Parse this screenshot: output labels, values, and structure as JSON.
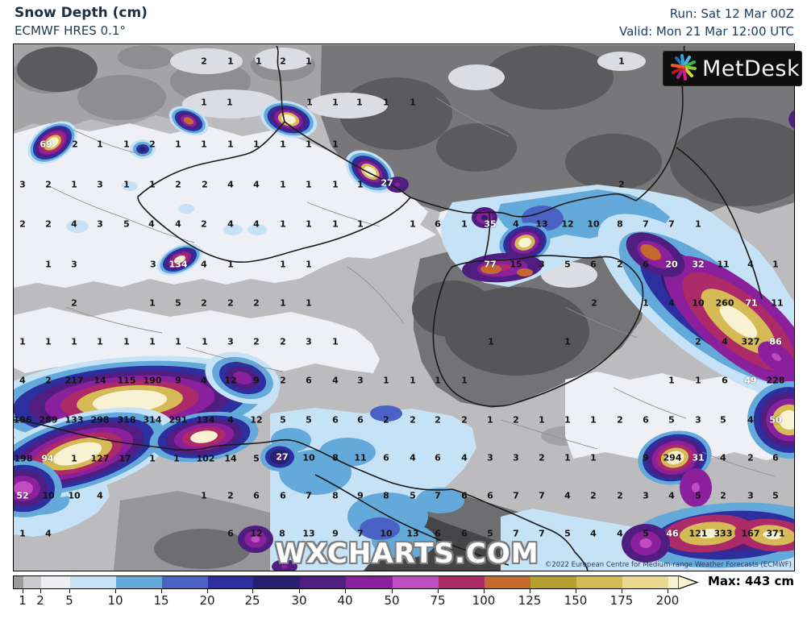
{
  "header": {
    "title": "Snow Depth (cm)",
    "subtitle": "ECMWF HRES 0.1°",
    "run_label": "Run: Sat 12 Mar 00Z",
    "valid_label": "Valid: Mon 21 Mar 12:00 UTC"
  },
  "logo": {
    "text": "MetDesk"
  },
  "theme": {
    "title_color": "#1b3047",
    "run_color": "#1c3e63"
  },
  "map": {
    "watermark": "WXCHARTS.COM",
    "copyright": "©2022 European Centre for Medium-range Weather Forecasts (ECMWF)",
    "values": [
      [
        252,
        75,
        "2"
      ],
      [
        285,
        75,
        "1"
      ],
      [
        320,
        75,
        "1"
      ],
      [
        350,
        75,
        "2"
      ],
      [
        382,
        75,
        "1"
      ],
      [
        770,
        75,
        "1"
      ],
      [
        252,
        126,
        "1"
      ],
      [
        284,
        126,
        "1"
      ],
      [
        383,
        126,
        "1"
      ],
      [
        415,
        126,
        "1"
      ],
      [
        445,
        126,
        "1"
      ],
      [
        478,
        126,
        "1"
      ],
      [
        511,
        126,
        "1"
      ],
      [
        56,
        178,
        "69",
        "w"
      ],
      [
        92,
        178,
        "2"
      ],
      [
        123,
        178,
        "1"
      ],
      [
        156,
        178,
        "1"
      ],
      [
        188,
        178,
        "2"
      ],
      [
        220,
        178,
        "1"
      ],
      [
        252,
        178,
        "1"
      ],
      [
        285,
        178,
        "1"
      ],
      [
        317,
        178,
        "1"
      ],
      [
        350,
        178,
        "1"
      ],
      [
        382,
        178,
        "1"
      ],
      [
        415,
        178,
        "1"
      ],
      [
        27,
        228,
        "3"
      ],
      [
        59,
        228,
        "2"
      ],
      [
        91,
        228,
        "1"
      ],
      [
        123,
        228,
        "3"
      ],
      [
        156,
        228,
        "1"
      ],
      [
        188,
        228,
        "1"
      ],
      [
        220,
        228,
        "2"
      ],
      [
        253,
        228,
        "2"
      ],
      [
        285,
        228,
        "4"
      ],
      [
        317,
        228,
        "4"
      ],
      [
        350,
        228,
        "1"
      ],
      [
        382,
        228,
        "1"
      ],
      [
        415,
        228,
        "1"
      ],
      [
        446,
        228,
        "1"
      ],
      [
        479,
        226,
        "27",
        "w"
      ],
      [
        770,
        228,
        "2"
      ],
      [
        27,
        277,
        "2"
      ],
      [
        59,
        277,
        "2"
      ],
      [
        91,
        277,
        "4"
      ],
      [
        123,
        277,
        "3"
      ],
      [
        156,
        277,
        "5"
      ],
      [
        187,
        277,
        "4"
      ],
      [
        220,
        277,
        "4"
      ],
      [
        252,
        277,
        "2"
      ],
      [
        285,
        277,
        "4"
      ],
      [
        317,
        277,
        "4"
      ],
      [
        350,
        277,
        "1"
      ],
      [
        382,
        277,
        "1"
      ],
      [
        415,
        277,
        "1"
      ],
      [
        446,
        277,
        "1"
      ],
      [
        511,
        277,
        "1"
      ],
      [
        542,
        277,
        "6"
      ],
      [
        575,
        277,
        "1"
      ],
      [
        607,
        277,
        "35",
        "w"
      ],
      [
        639,
        277,
        "4"
      ],
      [
        671,
        277,
        "13"
      ],
      [
        703,
        277,
        "12"
      ],
      [
        735,
        277,
        "10"
      ],
      [
        768,
        277,
        "8"
      ],
      [
        800,
        277,
        "7"
      ],
      [
        832,
        277,
        "7"
      ],
      [
        865,
        277,
        "1"
      ],
      [
        59,
        327,
        "1"
      ],
      [
        91,
        327,
        "3"
      ],
      [
        189,
        327,
        "3"
      ],
      [
        220,
        327,
        "134",
        "w"
      ],
      [
        252,
        327,
        "4"
      ],
      [
        285,
        327,
        "1"
      ],
      [
        350,
        327,
        "1"
      ],
      [
        382,
        327,
        "1"
      ],
      [
        607,
        327,
        "77",
        "w"
      ],
      [
        639,
        327,
        "15"
      ],
      [
        671,
        327,
        "3"
      ],
      [
        703,
        327,
        "5"
      ],
      [
        735,
        327,
        "6"
      ],
      [
        768,
        327,
        "2"
      ],
      [
        800,
        327,
        "6"
      ],
      [
        832,
        327,
        "20",
        "w"
      ],
      [
        865,
        327,
        "32",
        "w"
      ],
      [
        896,
        327,
        "11"
      ],
      [
        930,
        327,
        "4"
      ],
      [
        961,
        327,
        "1"
      ],
      [
        91,
        375,
        "2"
      ],
      [
        188,
        375,
        "1"
      ],
      [
        220,
        375,
        "5"
      ],
      [
        252,
        375,
        "2"
      ],
      [
        285,
        375,
        "2"
      ],
      [
        317,
        375,
        "2"
      ],
      [
        350,
        375,
        "1"
      ],
      [
        382,
        375,
        "1"
      ],
      [
        736,
        375,
        "2"
      ],
      [
        800,
        375,
        "1"
      ],
      [
        832,
        375,
        "4"
      ],
      [
        865,
        375,
        "10"
      ],
      [
        898,
        375,
        "260"
      ],
      [
        931,
        375,
        "71",
        "w"
      ],
      [
        963,
        375,
        "11"
      ],
      [
        27,
        423,
        "1"
      ],
      [
        59,
        423,
        "1"
      ],
      [
        91,
        423,
        "1"
      ],
      [
        123,
        423,
        "1"
      ],
      [
        156,
        423,
        "1"
      ],
      [
        188,
        423,
        "1"
      ],
      [
        220,
        423,
        "1"
      ],
      [
        253,
        423,
        "1"
      ],
      [
        285,
        423,
        "3"
      ],
      [
        317,
        423,
        "2"
      ],
      [
        350,
        423,
        "2"
      ],
      [
        382,
        423,
        "3"
      ],
      [
        415,
        423,
        "1"
      ],
      [
        608,
        423,
        "1"
      ],
      [
        703,
        423,
        "1"
      ],
      [
        865,
        423,
        "2"
      ],
      [
        898,
        423,
        "4"
      ],
      [
        930,
        423,
        "327"
      ],
      [
        961,
        423,
        "86",
        "w"
      ],
      [
        27,
        471,
        "4"
      ],
      [
        59,
        471,
        "2"
      ],
      [
        91,
        471,
        "217"
      ],
      [
        123,
        471,
        "14"
      ],
      [
        156,
        471,
        "115"
      ],
      [
        188,
        471,
        "190"
      ],
      [
        220,
        471,
        "9"
      ],
      [
        252,
        471,
        "4"
      ],
      [
        285,
        471,
        "12"
      ],
      [
        317,
        471,
        "9"
      ],
      [
        350,
        471,
        "2"
      ],
      [
        382,
        471,
        "6"
      ],
      [
        415,
        471,
        "4"
      ],
      [
        446,
        471,
        "3"
      ],
      [
        478,
        471,
        "1"
      ],
      [
        511,
        471,
        "1"
      ],
      [
        542,
        471,
        "1"
      ],
      [
        575,
        471,
        "1"
      ],
      [
        832,
        471,
        "1"
      ],
      [
        865,
        471,
        "1"
      ],
      [
        898,
        471,
        "6"
      ],
      [
        930,
        471,
        "49",
        "w"
      ],
      [
        961,
        471,
        "228"
      ],
      [
        27,
        520,
        "196"
      ],
      [
        59,
        520,
        "289"
      ],
      [
        91,
        520,
        "133"
      ],
      [
        123,
        520,
        "298"
      ],
      [
        156,
        520,
        "318"
      ],
      [
        188,
        520,
        "314"
      ],
      [
        220,
        520,
        "291"
      ],
      [
        254,
        520,
        "134"
      ],
      [
        285,
        520,
        "4"
      ],
      [
        317,
        520,
        "12"
      ],
      [
        350,
        520,
        "5"
      ],
      [
        382,
        520,
        "5"
      ],
      [
        415,
        520,
        "6"
      ],
      [
        446,
        520,
        "6"
      ],
      [
        478,
        520,
        "2"
      ],
      [
        511,
        520,
        "2"
      ],
      [
        542,
        520,
        "2"
      ],
      [
        575,
        520,
        "2"
      ],
      [
        607,
        520,
        "1"
      ],
      [
        639,
        520,
        "2"
      ],
      [
        671,
        520,
        "1"
      ],
      [
        703,
        520,
        "1"
      ],
      [
        735,
        520,
        "1"
      ],
      [
        768,
        520,
        "2"
      ],
      [
        800,
        520,
        "6"
      ],
      [
        832,
        520,
        "5"
      ],
      [
        865,
        520,
        "3"
      ],
      [
        896,
        520,
        "5"
      ],
      [
        930,
        520,
        "4"
      ],
      [
        961,
        520,
        "50",
        "w"
      ],
      [
        28,
        568,
        "198"
      ],
      [
        58,
        568,
        "94",
        "w"
      ],
      [
        91,
        568,
        "1"
      ],
      [
        123,
        568,
        "127"
      ],
      [
        154,
        568,
        "17"
      ],
      [
        188,
        568,
        "1"
      ],
      [
        218,
        568,
        "1"
      ],
      [
        254,
        568,
        "102"
      ],
      [
        285,
        568,
        "14"
      ],
      [
        317,
        568,
        "5"
      ],
      [
        349,
        566,
        "27",
        "w"
      ],
      [
        382,
        567,
        "10"
      ],
      [
        415,
        567,
        "8"
      ],
      [
        446,
        567,
        "11"
      ],
      [
        478,
        567,
        "6"
      ],
      [
        511,
        567,
        "4"
      ],
      [
        542,
        567,
        "6"
      ],
      [
        575,
        567,
        "4"
      ],
      [
        607,
        567,
        "3"
      ],
      [
        639,
        567,
        "3"
      ],
      [
        671,
        567,
        "2"
      ],
      [
        703,
        567,
        "1"
      ],
      [
        735,
        567,
        "1"
      ],
      [
        800,
        567,
        "9"
      ],
      [
        833,
        567,
        "294"
      ],
      [
        865,
        567,
        "31",
        "w"
      ],
      [
        896,
        567,
        "4"
      ],
      [
        930,
        567,
        "2"
      ],
      [
        961,
        567,
        "6"
      ],
      [
        27,
        614,
        "52",
        "w"
      ],
      [
        59,
        614,
        "10"
      ],
      [
        91,
        614,
        "10"
      ],
      [
        123,
        614,
        "4"
      ],
      [
        252,
        614,
        "1"
      ],
      [
        285,
        614,
        "2"
      ],
      [
        317,
        614,
        "6"
      ],
      [
        350,
        614,
        "6"
      ],
      [
        382,
        614,
        "7"
      ],
      [
        415,
        614,
        "8"
      ],
      [
        446,
        614,
        "9"
      ],
      [
        478,
        614,
        "8"
      ],
      [
        511,
        614,
        "5"
      ],
      [
        542,
        614,
        "7"
      ],
      [
        575,
        614,
        "6"
      ],
      [
        607,
        614,
        "6"
      ],
      [
        639,
        614,
        "7"
      ],
      [
        671,
        614,
        "7"
      ],
      [
        703,
        614,
        "4"
      ],
      [
        735,
        614,
        "2"
      ],
      [
        768,
        614,
        "2"
      ],
      [
        800,
        614,
        "3"
      ],
      [
        832,
        614,
        "4"
      ],
      [
        865,
        614,
        "5"
      ],
      [
        896,
        614,
        "2"
      ],
      [
        930,
        614,
        "3"
      ],
      [
        961,
        614,
        "5"
      ],
      [
        27,
        661,
        "1"
      ],
      [
        59,
        661,
        "4"
      ],
      [
        285,
        661,
        "6"
      ],
      [
        317,
        661,
        "12"
      ],
      [
        349,
        661,
        "8"
      ],
      [
        382,
        661,
        "13"
      ],
      [
        415,
        661,
        "9"
      ],
      [
        446,
        661,
        "7"
      ],
      [
        478,
        661,
        "10"
      ],
      [
        511,
        661,
        "13"
      ],
      [
        542,
        661,
        "6"
      ],
      [
        575,
        661,
        "6"
      ],
      [
        607,
        661,
        "5"
      ],
      [
        639,
        661,
        "7"
      ],
      [
        671,
        661,
        "7"
      ],
      [
        703,
        661,
        "5"
      ],
      [
        735,
        661,
        "4"
      ],
      [
        768,
        661,
        "4"
      ],
      [
        800,
        661,
        "5"
      ],
      [
        833,
        661,
        "46",
        "w"
      ],
      [
        865,
        661,
        "121"
      ],
      [
        896,
        661,
        "333"
      ],
      [
        930,
        661,
        "167"
      ],
      [
        961,
        661,
        "371"
      ]
    ]
  },
  "colorbar": {
    "labels": [
      "1",
      "2",
      "5",
      "10",
      "15",
      "20",
      "25",
      "30",
      "40",
      "50",
      "75",
      "100",
      "125",
      "150",
      "175",
      "200"
    ],
    "colors": [
      "#9c9c9e",
      "#cacccf",
      "#edeff5",
      "#c6e2f7",
      "#63a9d9",
      "#4a62c4",
      "#2d2f9f",
      "#272070",
      "#501d80",
      "#8b209d",
      "#c04cc2",
      "#ac2a67",
      "#c26a30",
      "#b5a02f",
      "#d5ba55",
      "#ead98f",
      "#f8f2d2"
    ],
    "max_label": "Max: 443 cm"
  }
}
